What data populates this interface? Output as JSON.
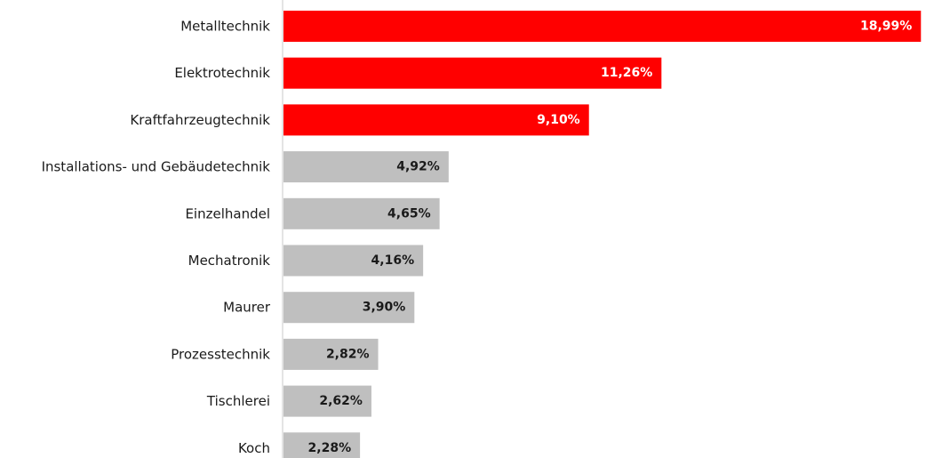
{
  "chart_data": {
    "type": "bar",
    "orientation": "horizontal",
    "categories": [
      "Metalltechnik",
      "Elektrotechnik",
      "Kraftfahrzeugtechnik",
      "Installations- und Gebäudetechnik",
      "Einzelhandel",
      "Mechatronik",
      "Maurer",
      "Prozesstechnik",
      "Tischlerei",
      "Koch"
    ],
    "values": [
      18.99,
      11.26,
      9.1,
      4.92,
      4.65,
      4.16,
      3.9,
      2.82,
      2.62,
      2.28
    ],
    "value_labels": [
      "18,99%",
      "11,26%",
      "9,10%",
      "4,92%",
      "4,65%",
      "4,16%",
      "3,90%",
      "2,82%",
      "2,62%",
      "2,28%"
    ],
    "colors": [
      "#ff0000",
      "#ff0000",
      "#ff0000",
      "#bfbfbf",
      "#bfbfbf",
      "#bfbfbf",
      "#bfbfbf",
      "#bfbfbf",
      "#bfbfbf",
      "#bfbfbf"
    ],
    "value_label_colors": [
      "#ffffff",
      "#ffffff",
      "#ffffff",
      "#1a1a1a",
      "#1a1a1a",
      "#1a1a1a",
      "#1a1a1a",
      "#1a1a1a",
      "#1a1a1a",
      "#1a1a1a"
    ],
    "xlim": [
      0,
      19.3
    ],
    "grid": false,
    "legend": "none",
    "title": "",
    "xlabel": "",
    "ylabel": ""
  }
}
